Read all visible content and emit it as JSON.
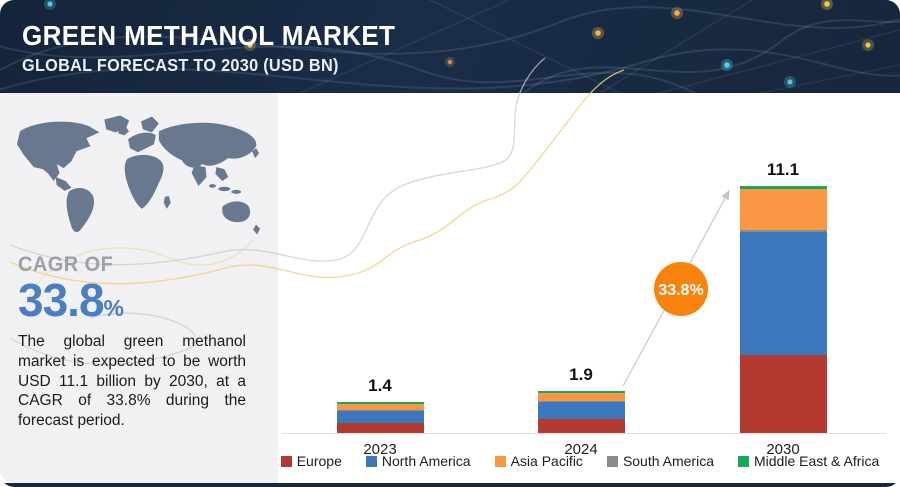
{
  "header": {
    "title": "GREEN METHANOL MARKET",
    "subtitle": "GLOBAL FORECAST TO 2030 (USD BN)"
  },
  "sidebar": {
    "cagr_label": "CAGR OF",
    "cagr_value": "33.8",
    "cagr_percent_sign": "%",
    "description": "The global green methanol market is expected to be worth USD 11.1 billion by 2030, at a CAGR of 33.8% during the forecast period."
  },
  "chart_data": {
    "type": "bar",
    "stacked": true,
    "title": "Green Methanol Market, Global Forecast (USD BN)",
    "categories": [
      "2023",
      "2024",
      "2030"
    ],
    "series": [
      {
        "name": "Europe",
        "color": "#b23a31",
        "values": [
          0.45,
          0.64,
          3.5
        ]
      },
      {
        "name": "North America",
        "color": "#3b79bc",
        "values": [
          0.55,
          0.78,
          5.55
        ]
      },
      {
        "name": "South America",
        "color": "#8b8b8b",
        "values": [
          0.02,
          0.03,
          0.07
        ]
      },
      {
        "name": "Asia Pacific",
        "color": "#f99746",
        "values": [
          0.28,
          0.34,
          1.85
        ]
      },
      {
        "name": "Middle East & Africa",
        "color": "#17a85b",
        "values": [
          0.1,
          0.11,
          0.13
        ]
      }
    ],
    "totals": [
      "1.4",
      "1.9",
      "11.1"
    ],
    "ylim": [
      0,
      11.1
    ],
    "grid": false,
    "legend_position": "bottom",
    "legend_order": [
      "Europe",
      "North America",
      "Asia Pacific",
      "South America",
      "Middle East & Africa"
    ],
    "growth_badge": {
      "label": "33.8%",
      "color": "#f8820b"
    }
  },
  "colors": {
    "header_bg": "#16283c",
    "panel_bg": "#f1f1f3",
    "map_fill": "#68788f",
    "cagr_blue": "#4a7ec0",
    "arrow_gray": "#cccccc"
  }
}
